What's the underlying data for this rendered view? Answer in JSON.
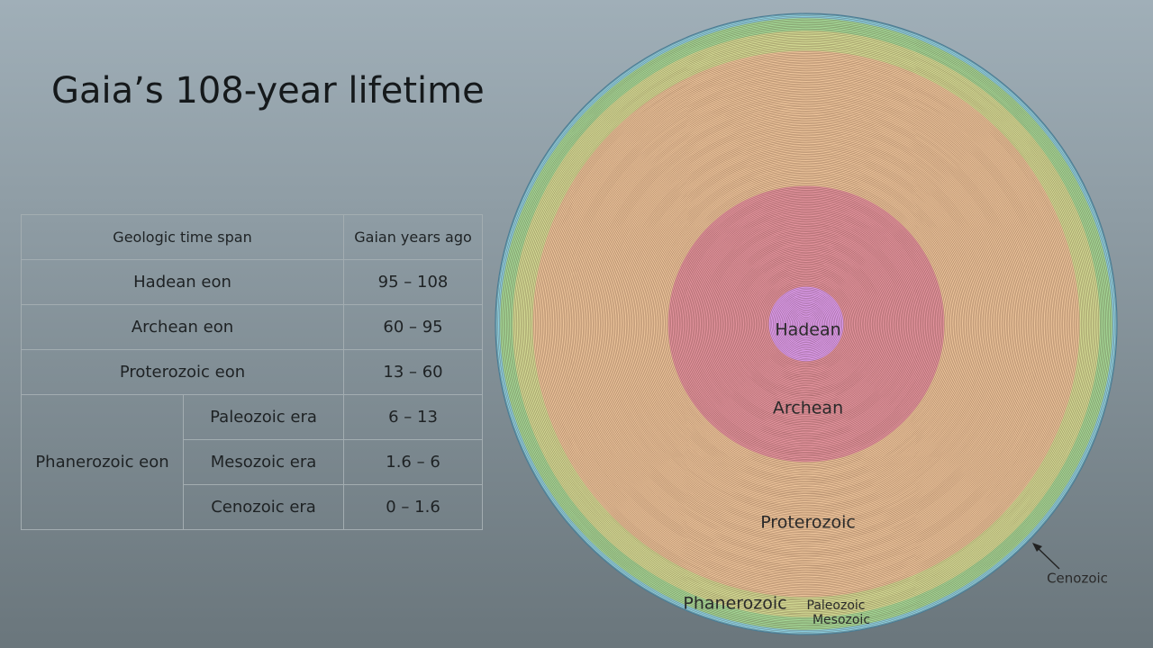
{
  "title": "Gaia’s 108-year lifetime",
  "table": {
    "header": [
      "Geologic time span",
      "Gaian years ago"
    ],
    "rows": [
      {
        "span": "Hadean eon",
        "years": "95 – 108"
      },
      {
        "span": "Archean eon",
        "years": "60 – 95"
      },
      {
        "span": "Proterozoic eon",
        "years": "13 – 60"
      }
    ],
    "group": {
      "label": "Phanerozoic eon",
      "rows": [
        {
          "span": "Paleozoic era",
          "years": "6 – 13"
        },
        {
          "span": "Mesozoic era",
          "years": "1.6 – 6"
        },
        {
          "span": "Cenozoic era",
          "years": "0 – 1.6"
        }
      ]
    }
  },
  "diagram": {
    "total": 108,
    "zones": [
      {
        "label": "Hadean",
        "end": 95,
        "color": "#dd9cec"
      },
      {
        "label": "Archean",
        "end": 60,
        "color": "#e6959f"
      },
      {
        "label": "Proterozoic",
        "end": 13,
        "color": "#efc69c"
      },
      {
        "label": "Paleozoic",
        "end": 6,
        "color": "#d6dd96"
      },
      {
        "label": "Mesozoic",
        "end": 1.6,
        "color": "#a6da98"
      },
      {
        "label": "Cenozoic",
        "end": 0,
        "color": "#8ccfe0"
      }
    ],
    "group_label": "Phanerozoic"
  }
}
